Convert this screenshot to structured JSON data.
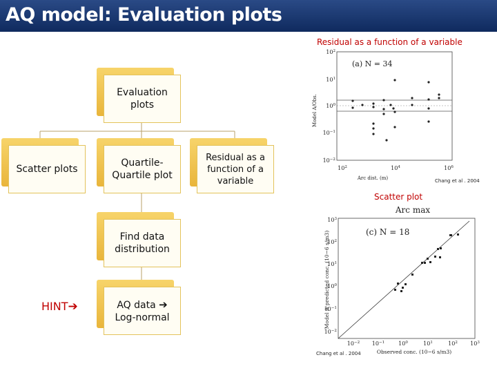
{
  "header": {
    "title": "AQ model: Evaluation plots"
  },
  "diagram": {
    "root": "Evaluation plots",
    "children": [
      "Scatter plots",
      "Quartile-Quartile plot",
      "Residual as a function of a variable"
    ],
    "step": "Find data distribution",
    "hint": "HINT",
    "result": [
      "AQ data",
      "Log-normal"
    ]
  },
  "figures": [
    {
      "caption": "Residual as a function of a variable",
      "panel": "(a) N = 34",
      "ylabel": "Model A/Obs.",
      "xlabel": "Arc dist. (m)",
      "yticks": [
        {
          "base": "10",
          "exp": "2"
        },
        {
          "base": "10",
          "exp": "1"
        },
        {
          "base": "10",
          "exp": "0"
        },
        {
          "base": "10",
          "exp": "−1"
        },
        {
          "base": "10",
          "exp": "−2"
        }
      ],
      "xticks": [
        {
          "base": "10",
          "exp": "2"
        },
        {
          "base": "10",
          "exp": "4"
        },
        {
          "base": "10",
          "exp": "6"
        }
      ],
      "source": "Chang et al . 2004"
    },
    {
      "caption": "Scatter plot",
      "title": "Arc max",
      "panel": "(c) N = 18",
      "ylabel": "Model A predicted conc. (10−6 s/m3)",
      "xlabel": "Observed conc. (10−6 s/m3)",
      "yticks": [
        {
          "base": "10",
          "exp": "3"
        },
        {
          "base": "10",
          "exp": "2"
        },
        {
          "base": "10",
          "exp": "1"
        },
        {
          "base": "10",
          "exp": "0"
        },
        {
          "base": "10",
          "exp": "−1"
        },
        {
          "base": "10",
          "exp": "−2"
        }
      ],
      "xticks": [
        {
          "base": "10",
          "exp": "−2"
        },
        {
          "base": "10",
          "exp": "−1"
        },
        {
          "base": "10",
          "exp": "0"
        },
        {
          "base": "10",
          "exp": "1"
        },
        {
          "base": "10",
          "exp": "2"
        },
        {
          "base": "10",
          "exp": "3"
        }
      ],
      "source": "Chang et al . 2004"
    }
  ]
}
